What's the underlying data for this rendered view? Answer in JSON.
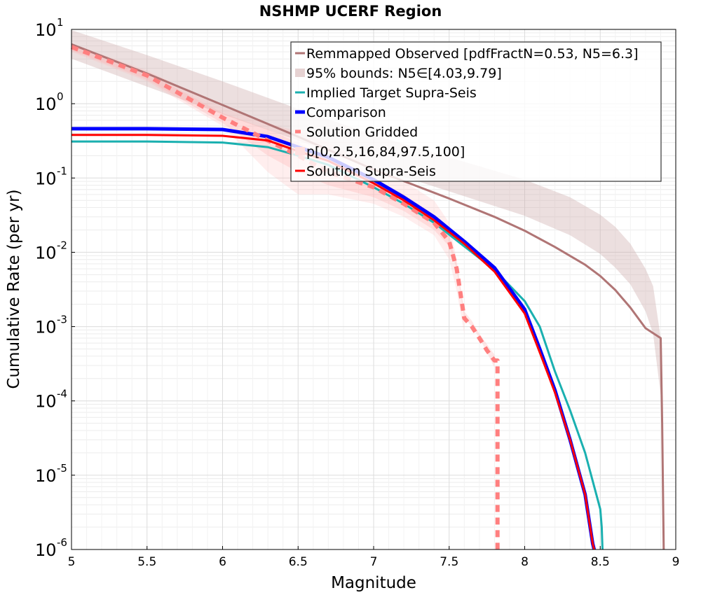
{
  "chart_data": {
    "type": "line",
    "title": "NSHMP UCERF Region",
    "xlabel": "Magnitude",
    "ylabel": "Cumulative Rate (per yr)",
    "xlim": [
      5,
      9
    ],
    "ylim": [
      1e-06,
      10
    ],
    "yscale": "log",
    "grid": true,
    "legend_position": "top-right",
    "x_ticks": [
      {
        "value": 5,
        "label": "5"
      },
      {
        "value": 5.5,
        "label": "5.5"
      },
      {
        "value": 6,
        "label": "6"
      },
      {
        "value": 6.5,
        "label": "6.5"
      },
      {
        "value": 7,
        "label": "7"
      },
      {
        "value": 7.5,
        "label": "7.5"
      },
      {
        "value": 8,
        "label": "8"
      },
      {
        "value": 8.5,
        "label": "8.5"
      },
      {
        "value": 9,
        "label": "9"
      }
    ],
    "y_ticks": [
      {
        "value": 10,
        "base": "10",
        "exp": "1"
      },
      {
        "value": 1,
        "base": "10",
        "exp": "0"
      },
      {
        "value": 0.1,
        "base": "10",
        "exp": "-1"
      },
      {
        "value": 0.01,
        "base": "10",
        "exp": "-2"
      },
      {
        "value": 0.001,
        "base": "10",
        "exp": "-3"
      },
      {
        "value": 0.0001,
        "base": "10",
        "exp": "-4"
      },
      {
        "value": 1e-05,
        "base": "10",
        "exp": "-5"
      },
      {
        "value": 1e-06,
        "base": "10",
        "exp": "-6"
      }
    ],
    "bands": [
      {
        "legend_index": 1,
        "color": "#cdaaaa",
        "opacity": 0.38,
        "x": [
          5,
          5.5,
          6,
          6.5,
          7,
          7.5,
          8,
          8.3,
          8.5,
          8.6,
          8.7,
          8.8,
          8.85,
          8.9
        ],
        "upper": [
          9.79,
          4.5,
          2.0,
          0.85,
          0.38,
          0.19,
          0.095,
          0.055,
          0.032,
          0.022,
          0.013,
          0.006,
          0.0035,
          0.0007
        ],
        "lower": [
          4.03,
          1.7,
          0.72,
          0.32,
          0.14,
          0.066,
          0.031,
          0.017,
          0.0095,
          0.0062,
          0.0037,
          0.0016,
          0.0008,
          0.00012
        ]
      },
      {
        "legend_index": 5,
        "color": "#ffb0b0",
        "opacity": 0.22,
        "x": [
          5,
          5.5,
          6,
          6.3,
          6.5,
          6.7,
          7,
          7.2,
          7.4,
          7.5,
          7.55,
          7.6
        ],
        "upper": [
          6.5,
          2.8,
          0.9,
          0.55,
          0.42,
          0.3,
          0.14,
          0.09,
          0.05,
          0.025,
          0.008,
          0.0015
        ],
        "lower": [
          5.0,
          2.0,
          0.5,
          0.12,
          0.06,
          0.06,
          0.045,
          0.03,
          0.017,
          0.008,
          0.003,
          0.0008
        ]
      },
      {
        "legend_index": 5,
        "color": "#ffb0b0",
        "opacity": 0.3,
        "x": [
          5,
          5.5,
          6,
          6.3,
          6.5,
          6.7,
          7,
          7.2,
          7.4,
          7.5,
          7.55,
          7.6,
          7.65,
          7.7,
          7.75,
          7.8
        ],
        "upper": [
          6.2,
          2.6,
          0.75,
          0.45,
          0.3,
          0.18,
          0.1,
          0.06,
          0.032,
          0.017,
          0.007,
          0.0016,
          0.0012,
          0.0008,
          0.00058,
          0.00042
        ],
        "lower": [
          5.2,
          2.1,
          0.55,
          0.2,
          0.12,
          0.08,
          0.055,
          0.036,
          0.02,
          0.012,
          0.006,
          0.0013,
          0.001,
          0.0007,
          0.00045,
          0.00028
        ]
      }
    ],
    "series": [
      {
        "name": "Remmapped Observed [pdfFractN=0.53, N5=6.3]",
        "color": "#b07575",
        "width": 3,
        "dash": "",
        "x": [
          5,
          5.5,
          6,
          6.5,
          7,
          7.5,
          7.8,
          8,
          8.2,
          8.4,
          8.5,
          8.6,
          8.7,
          8.8,
          8.9,
          8.91,
          8.92
        ],
        "y": [
          6.3,
          2.55,
          0.96,
          0.36,
          0.13,
          0.053,
          0.03,
          0.0195,
          0.0118,
          0.0068,
          0.0048,
          0.0031,
          0.0018,
          0.00095,
          0.0007,
          5e-05,
          1e-06
        ]
      },
      {
        "name": "Implied Target Supra-Seis",
        "color": "#1ab0b0",
        "width": 3,
        "dash": "",
        "x": [
          5,
          5.5,
          6,
          6.3,
          6.5,
          6.7,
          7,
          7.2,
          7.4,
          7.6,
          7.8,
          8,
          8.1,
          8.2,
          8.3,
          8.4,
          8.5,
          8.51,
          8.515
        ],
        "y": [
          0.31,
          0.31,
          0.3,
          0.26,
          0.2,
          0.15,
          0.075,
          0.045,
          0.025,
          0.012,
          0.0058,
          0.0022,
          0.001,
          0.00025,
          7.5e-05,
          2e-05,
          3.5e-06,
          2e-06,
          1e-06
        ]
      },
      {
        "name": "Comparison",
        "color": "#0000ff",
        "width": 5,
        "dash": "",
        "x": [
          5,
          5.5,
          6,
          6.3,
          6.5,
          6.7,
          7,
          7.2,
          7.4,
          7.6,
          7.8,
          8,
          8.1,
          8.2,
          8.3,
          8.4,
          8.45,
          8.46
        ],
        "y": [
          0.46,
          0.46,
          0.45,
          0.36,
          0.26,
          0.19,
          0.095,
          0.055,
          0.03,
          0.014,
          0.0062,
          0.0017,
          0.0005,
          0.00014,
          3e-05,
          5.5e-06,
          1.2e-06,
          1e-06
        ]
      },
      {
        "name": "Solution Gridded",
        "color": "#ff7f7f",
        "width": 6,
        "dash": "10,8",
        "x": [
          5,
          5.5,
          6,
          6.3,
          6.5,
          6.7,
          7,
          7.2,
          7.4,
          7.5,
          7.55,
          7.6,
          7.65,
          7.7,
          7.75,
          7.8,
          7.82,
          7.82
        ],
        "y": [
          5.8,
          2.4,
          0.65,
          0.32,
          0.2,
          0.12,
          0.075,
          0.045,
          0.025,
          0.014,
          0.006,
          0.0013,
          0.001,
          0.0007,
          0.00048,
          0.00035,
          0.00035,
          1e-06
        ]
      },
      {
        "legend_index": 5,
        "name": "p[0,2.5,16,84,97.5,100]",
        "color": "#ffb0b0",
        "width": 0,
        "dash": "",
        "x": [],
        "y": []
      },
      {
        "name": "Solution Supra-Seis",
        "color": "#ff0000",
        "width": 3,
        "dash": "",
        "x": [
          5,
          5.5,
          6,
          6.3,
          6.5,
          6.7,
          7,
          7.2,
          7.4,
          7.6,
          7.8,
          8,
          8.1,
          8.2,
          8.3,
          8.4,
          8.45,
          8.46
        ],
        "y": [
          0.38,
          0.38,
          0.37,
          0.32,
          0.23,
          0.17,
          0.085,
          0.05,
          0.027,
          0.013,
          0.0055,
          0.0015,
          0.00045,
          0.00013,
          3e-05,
          5.5e-06,
          1.2e-06,
          1e-06
        ]
      }
    ],
    "legend": [
      {
        "label": "Remmapped Observed [pdfFractN=0.53, N5=6.3]",
        "kind": "line",
        "color": "#b07575",
        "width": 3,
        "dash": ""
      },
      {
        "label": "95% bounds: N5∈[4.03,9.79]",
        "kind": "patch",
        "color": "#e6d2d2",
        "width": 0,
        "dash": ""
      },
      {
        "label": "Implied Target Supra-Seis",
        "kind": "line",
        "color": "#1ab0b0",
        "width": 3,
        "dash": ""
      },
      {
        "label": "Comparison",
        "kind": "line",
        "color": "#0000ff",
        "width": 5,
        "dash": ""
      },
      {
        "label": "Solution Gridded",
        "kind": "line",
        "color": "#ff7f7f",
        "width": 5,
        "dash": "8,6"
      },
      {
        "label": "p[0,2.5,16,84,97.5,100]",
        "kind": "patch",
        "color": "#ffe0e0",
        "width": 0,
        "dash": ""
      },
      {
        "label": "Solution Supra-Seis",
        "kind": "line",
        "color": "#ff0000",
        "width": 3,
        "dash": ""
      }
    ]
  }
}
